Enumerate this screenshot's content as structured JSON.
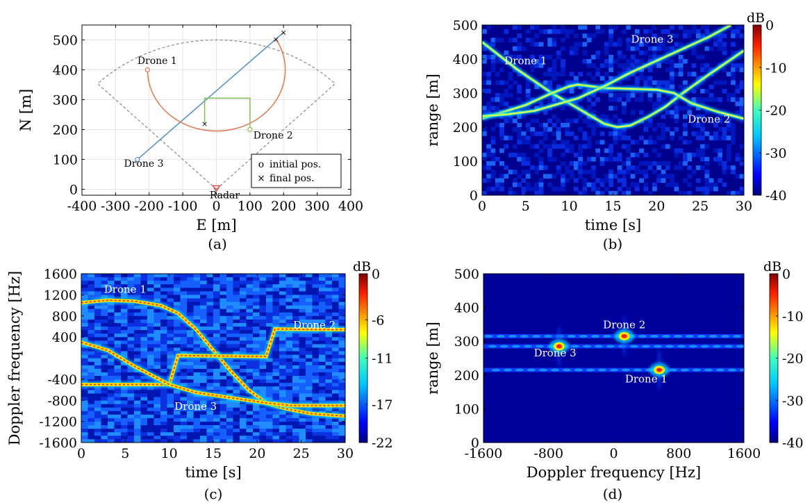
{
  "panels": [
    {
      "caption": "(a)",
      "chart_data": {
        "type": "line",
        "xlabel": "E [m]",
        "ylabel": "N [m]",
        "xlim": [
          -400,
          400
        ],
        "ylim": [
          -20,
          550
        ],
        "xticks": [
          -400,
          -300,
          -200,
          -100,
          0,
          100,
          200,
          300,
          400
        ],
        "yticks": [
          0,
          100,
          200,
          300,
          400,
          500
        ],
        "grid": true,
        "legend": {
          "position": "bottom-right",
          "entries": [
            {
              "marker": "o",
              "label": "initial pos."
            },
            {
              "marker": "×",
              "label": "final pos."
            }
          ]
        },
        "coverage_sector": {
          "center": [
            0,
            0
          ],
          "radius": 500,
          "angles_deg": [
            45,
            135
          ],
          "style": "dashed"
        },
        "series": [
          {
            "name": "Drone 3",
            "color": "#4f8fc8",
            "points": [
              [
                -235,
                100
              ],
              [
                200,
                525
              ]
            ]
          },
          {
            "name": "Drone 1",
            "color": "#e0764f",
            "arc": {
              "center": [
                0,
                400
              ],
              "radius": 205,
              "from_deg": 180,
              "to_deg": 30,
              "clockwise": false
            }
          },
          {
            "name": "Drone 2",
            "color": "#86bd54",
            "points": [
              [
                100,
                200
              ],
              [
                100,
                305
              ],
              [
                -35,
                305
              ],
              [
                -35,
                220
              ]
            ]
          }
        ],
        "annotations": [
          {
            "text": "Drone 1",
            "x": -235,
            "y": 420
          },
          {
            "text": "Drone 2",
            "x": 110,
            "y": 170
          },
          {
            "text": "Drone 3",
            "x": -275,
            "y": 75
          },
          {
            "text": "Radar",
            "x": -20,
            "y": -30
          }
        ]
      }
    },
    {
      "caption": "(b)",
      "chart_data": {
        "type": "heatmap",
        "xlabel": "time [s]",
        "ylabel": "range [m]",
        "xlim": [
          0,
          30
        ],
        "ylim": [
          0,
          500
        ],
        "xticks": [
          0,
          5,
          10,
          15,
          20,
          25,
          30
        ],
        "yticks": [
          0,
          100,
          200,
          300,
          400,
          500
        ],
        "colorbar": {
          "unit": "dB",
          "range": [
            -40,
            0
          ],
          "ticks": [
            0,
            -10,
            -20,
            -30,
            -40
          ]
        },
        "series": [
          {
            "name": "Drone 1",
            "x": [
              0,
              4,
              8,
              10,
              12,
              14,
              15.5,
              17,
              19,
              21,
              23,
              26,
              30
            ],
            "y": [
              450,
              370,
              300,
              270,
              240,
              210,
              200,
              205,
              230,
              260,
              300,
              355,
              425
            ]
          },
          {
            "name": "Drone 2",
            "x": [
              0,
              5,
              8,
              10,
              11,
              14,
              20,
              22,
              24,
              27,
              30
            ],
            "y": [
              225,
              265,
              300,
              320,
              325,
              315,
              310,
              300,
              270,
              245,
              225
            ]
          },
          {
            "name": "Drone 3",
            "x": [
              0,
              3,
              6,
              9,
              11,
              14,
              17,
              20,
              23,
              26,
              28.5
            ],
            "y": [
              232,
              238,
              248,
              270,
              285,
              320,
              360,
              395,
              430,
              465,
              500
            ]
          }
        ],
        "annotations": [
          {
            "text": "Drone 1",
            "x": 5,
            "y": 385
          },
          {
            "text": "Drone 3",
            "x": 19.5,
            "y": 448
          },
          {
            "text": "Drone 2",
            "x": 26,
            "y": 213
          }
        ]
      }
    },
    {
      "caption": "(c)",
      "chart_data": {
        "type": "heatmap",
        "xlabel": "time [s]",
        "ylabel": "Doppler frequency [Hz]",
        "xlim": [
          0,
          30
        ],
        "ylim": [
          -1600,
          1600
        ],
        "xticks": [
          0,
          5,
          10,
          15,
          20,
          25,
          30
        ],
        "yticks": [
          1600,
          1200,
          800,
          400,
          -400,
          -800,
          -1200,
          -1600
        ],
        "colorbar": {
          "unit": "dB",
          "range": [
            -22,
            0
          ],
          "ticks": [
            0,
            -6,
            -11,
            -17,
            -22
          ]
        },
        "series": [
          {
            "name": "Drone 1",
            "x": [
              0,
              3,
              6,
              9,
              11,
              13,
              15,
              17,
              19,
              21,
              23,
              26,
              30
            ],
            "y": [
              1050,
              1100,
              1080,
              1000,
              850,
              550,
              150,
              -250,
              -600,
              -850,
              -950,
              -1050,
              -1100
            ]
          },
          {
            "name": "Drone 2",
            "x": [
              0,
              10,
              11,
              21,
              22,
              30
            ],
            "y": [
              -500,
              -500,
              50,
              30,
              550,
              540
            ]
          },
          {
            "name": "Drone 3",
            "x": [
              0,
              3,
              6,
              10,
              13,
              17,
              21,
              24,
              27,
              30
            ],
            "y": [
              300,
              150,
              -150,
              -500,
              -650,
              -750,
              -850,
              -900,
              -900,
              -900
            ]
          }
        ],
        "annotations": [
          {
            "text": "Drone 1",
            "x": 5,
            "y": 1240
          },
          {
            "text": "Drone 2",
            "x": 26.5,
            "y": 560
          },
          {
            "text": "Drone 3",
            "x": 13,
            "y": -980
          }
        ]
      }
    },
    {
      "caption": "(d)",
      "chart_data": {
        "type": "heatmap",
        "xlabel": "Doppler frequency [Hz]",
        "ylabel": "range [m]",
        "xlim": [
          -1600,
          1600
        ],
        "ylim": [
          0,
          500
        ],
        "xticks": [
          -1600,
          -800,
          0,
          800,
          1600
        ],
        "yticks": [
          0,
          100,
          200,
          300,
          400,
          500
        ],
        "colorbar": {
          "unit": "dB",
          "range": [
            -40,
            0
          ],
          "ticks": [
            0,
            -10,
            -20,
            -30,
            -40
          ]
        },
        "points": [
          {
            "name": "Drone 2",
            "doppler": 130,
            "range": 315
          },
          {
            "name": "Drone 3",
            "doppler": -670,
            "range": 285
          },
          {
            "name": "Drone 1",
            "doppler": 560,
            "range": 215
          }
        ],
        "stripes": [
          315,
          285,
          215
        ],
        "annotations": [
          {
            "text": "Drone 2",
            "x": 130,
            "y": 338
          },
          {
            "text": "Drone 3",
            "x": -720,
            "y": 255
          },
          {
            "text": "Drone 1",
            "x": 400,
            "y": 178
          }
        ]
      }
    }
  ]
}
